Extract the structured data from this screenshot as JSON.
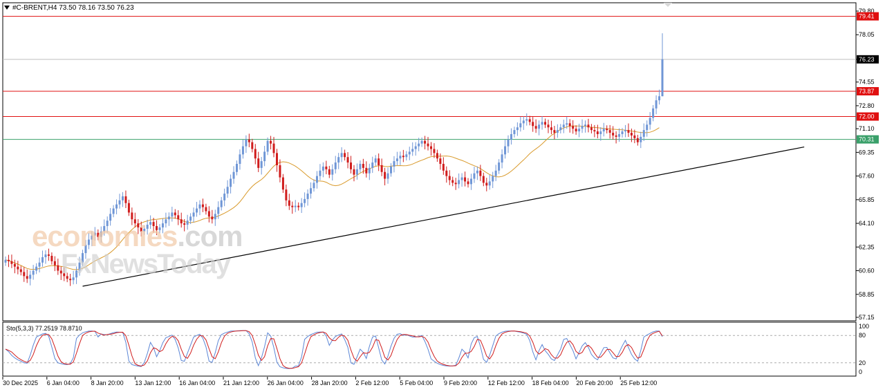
{
  "header": {
    "symbol_info": "#C-BRENT,H4  73.50 78.16 73.50 76.23"
  },
  "stochastic": {
    "label": "Sto(5,3,3) 77.2519 78.8710",
    "levels": [
      "100",
      "80",
      "20",
      "0"
    ]
  },
  "watermark": {
    "part1": "economies",
    "part2": ".com",
    "line2": "FxNewsToday"
  },
  "colors": {
    "bull": "#6f96d6",
    "bear": "#d01c1c",
    "ma": "#d99a2b",
    "resistance": "#e01010",
    "support_green": "#3aa06a",
    "current_line": "#bdbdbd",
    "trendline": "#000000",
    "stoch_main": "#5b86d6",
    "stoch_signal": "#d01c1c"
  },
  "chart_data": {
    "type": "candlestick",
    "symbol": "#C-BRENT",
    "timeframe": "H4",
    "last_bar": {
      "open": 73.5,
      "high": 78.16,
      "low": 73.5,
      "close": 76.23
    },
    "price_axis_ticks": [
      "79.80",
      "78.05",
      "76.23",
      "74.55",
      "72.80",
      "71.10",
      "69.35",
      "67.60",
      "65.85",
      "64.10",
      "62.35",
      "60.60",
      "58.85",
      "57.15"
    ],
    "ylim": [
      57.15,
      79.8
    ],
    "x_tick_labels": [
      "30 Dec 2025",
      "6 Jan 04:00",
      "8 Jan 20:00",
      "13 Jan 12:00",
      "16 Jan 04:00",
      "21 Jan 12:00",
      "26 Jan 04:00",
      "28 Jan 20:00",
      "2 Feb 12:00",
      "5 Feb 04:00",
      "9 Feb 20:00",
      "12 Feb 12:00",
      "18 Feb 04:00",
      "20 Feb 20:00",
      "25 Feb 12:00"
    ],
    "horizontal_levels": [
      {
        "value": 79.41,
        "label": "79.41",
        "kind": "resistance"
      },
      {
        "value": 76.23,
        "label": "76.23",
        "kind": "current"
      },
      {
        "value": 73.87,
        "label": "73.87",
        "kind": "resistance"
      },
      {
        "value": 72.0,
        "label": "72.00",
        "kind": "resistance"
      },
      {
        "value": 70.31,
        "label": "70.31",
        "kind": "support"
      }
    ],
    "trendline": {
      "from": {
        "bar": 25,
        "price": 59.45
      },
      "to": {
        "bar": 259,
        "price": 69.75
      }
    },
    "closes": [
      61.4,
      61.3,
      61.1,
      60.9,
      60.7,
      60.5,
      60.2,
      60.0,
      60.3,
      60.6,
      60.9,
      61.2,
      61.6,
      61.8,
      61.7,
      61.3,
      61.0,
      60.6,
      60.4,
      60.2,
      60.0,
      59.9,
      60.1,
      60.6,
      61.2,
      61.9,
      62.5,
      62.9,
      63.2,
      63.4,
      63.1,
      63.5,
      63.9,
      64.3,
      64.8,
      65.2,
      65.5,
      65.8,
      66.1,
      65.6,
      64.9,
      64.4,
      64.1,
      63.8,
      63.5,
      63.7,
      64.0,
      64.2,
      63.9,
      63.6,
      63.8,
      64.1,
      64.4,
      64.6,
      64.9,
      64.7,
      64.4,
      64.1,
      64.0,
      64.3,
      64.6,
      64.9,
      65.2,
      65.5,
      65.3,
      65.0,
      64.6,
      64.4,
      64.8,
      65.3,
      65.8,
      66.3,
      66.8,
      67.4,
      67.9,
      68.5,
      69.2,
      69.8,
      70.3,
      70.1,
      69.6,
      68.9,
      68.2,
      68.7,
      69.4,
      70.2,
      70.0,
      69.3,
      68.4,
      67.5,
      66.6,
      65.8,
      65.4,
      65.3,
      65.4,
      65.3,
      65.6,
      65.9,
      66.3,
      66.7,
      67.1,
      67.6,
      68.0,
      68.3,
      68.1,
      67.7,
      68.1,
      68.6,
      69.0,
      69.3,
      69.0,
      68.6,
      68.1,
      67.7,
      68.1,
      68.5,
      68.2,
      67.8,
      68.2,
      68.6,
      68.9,
      68.4,
      67.9,
      67.4,
      67.8,
      68.3,
      68.7,
      68.9,
      69.1,
      69.0,
      69.2,
      69.4,
      69.6,
      69.8,
      70.0,
      70.2,
      70.0,
      69.8,
      69.6,
      69.3,
      68.9,
      68.5,
      68.0,
      67.6,
      67.3,
      67.1,
      67.0,
      67.3,
      67.5,
      67.2,
      67.0,
      67.4,
      67.8,
      68.0,
      67.6,
      67.1,
      66.9,
      67.2,
      67.6,
      68.0,
      68.6,
      69.2,
      69.8,
      70.3,
      70.7,
      71.0,
      71.2,
      71.5,
      71.7,
      71.8,
      71.6,
      71.3,
      71.1,
      71.4,
      71.6,
      71.4,
      71.2,
      71.0,
      70.8,
      71.0,
      71.2,
      71.4,
      71.5,
      71.3,
      71.1,
      70.9,
      71.1,
      71.3,
      71.4,
      71.2,
      71.0,
      70.9,
      70.7,
      70.9,
      71.1,
      71.0,
      70.8,
      70.6,
      70.5,
      70.7,
      70.9,
      71.0,
      70.8,
      70.6,
      70.4,
      70.1,
      70.5,
      71.0,
      71.4,
      71.9,
      72.6,
      73.2,
      73.5,
      76.23
    ],
    "moving_average": {
      "start": [
        0,
        60.8
      ],
      "end": [
        219,
        70.6
      ]
    },
    "stochastic_main_last": 77.2519,
    "stochastic_signal_last": 78.871,
    "stochastic_levels": [
      100,
      80,
      20,
      0
    ]
  }
}
